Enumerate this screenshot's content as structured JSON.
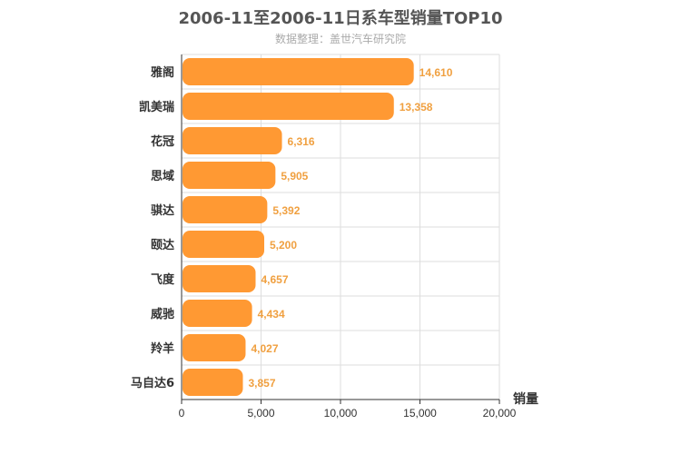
{
  "chart_data": {
    "type": "bar",
    "orientation": "horizontal",
    "title": "2006-11至2006-11日系车型销量TOP10",
    "subtitle": "数据整理：盖世汽车研究院",
    "xlabel": "销量",
    "ylabel": "",
    "xlim": [
      0,
      20000
    ],
    "ticks": [
      0,
      5000,
      10000,
      15000,
      20000
    ],
    "tick_labels": [
      "0",
      "5,000",
      "10,000",
      "15,000",
      "20,000"
    ],
    "grid": true,
    "legend": "none",
    "bar_color": "#ff9933",
    "label_color": "#f0a040",
    "categories": [
      "雅阁",
      "凯美瑞",
      "花冠",
      "思域",
      "骐达",
      "颐达",
      "飞度",
      "威驰",
      "羚羊",
      "马自达6"
    ],
    "values": [
      14610,
      13358,
      6316,
      5905,
      5392,
      5200,
      4657,
      4434,
      4027,
      3857
    ],
    "value_labels": [
      "14,610",
      "13,358",
      "6,316",
      "5,905",
      "5,392",
      "5,200",
      "4,657",
      "4,434",
      "4,027",
      "3,857"
    ]
  }
}
